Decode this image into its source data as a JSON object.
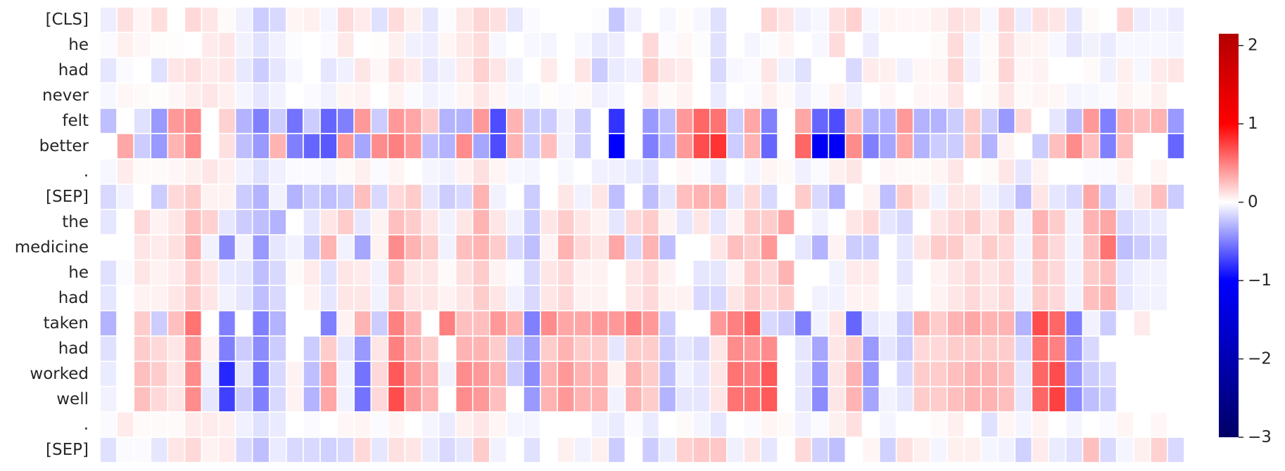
{
  "chart_data": {
    "type": "heatmap",
    "title": "",
    "xlabel": "",
    "ylabel": "",
    "y_labels": [
      "[CLS]",
      "he",
      "had",
      "never",
      "felt",
      "better",
      ".",
      "[SEP]",
      "the",
      "medicine",
      "he",
      "had",
      "taken",
      "had",
      "worked",
      "well",
      ".",
      "[SEP]"
    ],
    "n_columns": 64,
    "colormap": [
      "#000066",
      "#0000ff",
      "#ffffff",
      "#ff0000",
      "#b40000"
    ],
    "colorbar": {
      "vmin": -3,
      "vmax": 2.15,
      "ticks": [
        2,
        1,
        0,
        -1,
        -2,
        -3
      ],
      "tick_labels": [
        "2",
        "1",
        "0",
        "−1",
        "−2",
        "−3"
      ]
    },
    "values": [
      [
        -0.07,
        0.12,
        0.04,
        0.13,
        0.0,
        0.15,
        0.1,
        0.02,
        -0.06,
        -0.2,
        -0.15,
        0.04,
        0.06,
        -0.04,
        0.14,
        0.08,
        -0.12,
        0.14,
        0.06,
        -0.1,
        -0.01,
        0.09,
        0.16,
        0.12,
        -0.09,
        -0.02,
        0.0,
        0.0,
        0.0,
        -0.01,
        -0.22,
        -0.06,
        0.0,
        -0.03,
        0.01,
        -0.03,
        -0.12,
        0.0,
        0.0,
        0.16,
        0.1,
        -0.06,
        -0.03,
        0.12,
        0.18,
        -0.03,
        0.04,
        0.03,
        0.03,
        0.06,
        0.12,
        0.1,
        -0.03,
        0.16,
        -0.07,
        0.12,
        0.1,
        -0.1,
        0.02,
        0.0,
        0.16,
        -0.07,
        -0.05,
        -0.07
      ],
      [
        -0.02,
        0.06,
        0.03,
        0.01,
        0.01,
        0.0,
        0.08,
        0.1,
        -0.05,
        -0.12,
        -0.06,
        -0.01,
        0.0,
        -0.02,
        0.09,
        0.0,
        0.01,
        0.06,
        -0.06,
        -0.07,
        0.04,
        0.09,
        0.14,
        -0.03,
        0.0,
        -0.03,
        -0.04,
        0.0,
        -0.03,
        -0.09,
        -0.07,
        0.0,
        0.15,
        -0.01,
        0.03,
        -0.01,
        -0.12,
        0.0,
        -0.04,
        -0.01,
        0.04,
        0.0,
        -0.03,
        0.14,
        0.0,
        -0.07,
        0.0,
        0.0,
        0.0,
        0.02,
        0.14,
        -0.04,
        0.02,
        0.14,
        0.05,
        0.04,
        -0.03,
        -0.1,
        -0.05,
        -0.08,
        -0.03,
        -0.03,
        -0.03,
        -0.04
      ],
      [
        -0.1,
        -0.02,
        0.0,
        -0.12,
        0.1,
        0.12,
        0.08,
        0.1,
        -0.09,
        -0.2,
        -0.1,
        -0.03,
        0.0,
        -0.1,
        -0.06,
        0.1,
        0.03,
        0.12,
        0.08,
        -0.1,
        -0.06,
        0.08,
        0.18,
        0.1,
        -0.05,
        0.0,
        0.08,
        0.0,
        0.1,
        -0.2,
        -0.08,
        -0.06,
        0.2,
        0.1,
        0.08,
        0.0,
        -0.15,
        -0.03,
        -0.02,
        0.1,
        -0.05,
        -0.12,
        0.0,
        0.0,
        -0.15,
        0.08,
        0.06,
        -0.06,
        0.03,
        0.04,
        0.16,
        -0.05,
        0.02,
        0.16,
        0.03,
        0.05,
        0.0,
        0.0,
        0.02,
        -0.06,
        0.06,
        -0.03,
        0.08,
        0.1
      ],
      [
        -0.03,
        0.03,
        0.02,
        0.01,
        0.03,
        0.07,
        0.1,
        0.06,
        -0.04,
        -0.1,
        -0.05,
        0.0,
        -0.02,
        -0.05,
        0.04,
        0.05,
        0.0,
        0.05,
        -0.02,
        -0.05,
        -0.03,
        0.04,
        0.1,
        0.04,
        -0.03,
        -0.03,
        0.01,
        -0.02,
        0.02,
        -0.06,
        -0.04,
        0.0,
        0.08,
        0.02,
        0.05,
        0.0,
        -0.08,
        0.0,
        -0.02,
        0.06,
        0.02,
        -0.06,
        -0.02,
        0.05,
        -0.06,
        0.0,
        0.03,
        0.0,
        0.03,
        0.03,
        0.1,
        0.0,
        0.02,
        0.1,
        0.02,
        0.04,
        0.03,
        -0.04,
        -0.03,
        -0.02,
        0.05,
        0.02,
        0.06,
        0.0
      ],
      [
        -0.25,
        0.0,
        -0.12,
        -0.4,
        0.4,
        0.45,
        0.0,
        0.18,
        -0.3,
        -0.5,
        -0.2,
        -0.55,
        -0.2,
        -0.6,
        -0.5,
        0.4,
        -0.2,
        0.4,
        0.35,
        0.2,
        -0.3,
        -0.3,
        0.4,
        -0.7,
        0.3,
        -0.2,
        -0.2,
        -0.05,
        -0.2,
        0.0,
        -0.8,
        0.0,
        -0.4,
        -0.25,
        0.4,
        0.6,
        0.55,
        -0.2,
        0.35,
        -0.5,
        0.0,
        0.35,
        -0.6,
        -0.7,
        0.25,
        -0.3,
        -0.3,
        0.4,
        -0.3,
        -0.3,
        -0.2,
        0.2,
        -0.2,
        -0.4,
        0.15,
        0.0,
        -0.1,
        -0.25,
        0.4,
        -0.5,
        0.3,
        0.25,
        0.3,
        -0.4
      ],
      [
        0.0,
        0.35,
        -0.2,
        -0.4,
        0.3,
        0.45,
        0.0,
        0.12,
        -0.25,
        -0.4,
        0.3,
        -0.5,
        -0.6,
        -0.65,
        0.4,
        -0.35,
        0.45,
        0.5,
        0.4,
        -0.25,
        -0.3,
        0.45,
        -0.35,
        -0.7,
        0.3,
        -0.2,
        0.25,
        -0.05,
        -0.2,
        0.0,
        -1.0,
        0.0,
        -0.5,
        -0.3,
        0.4,
        0.7,
        0.8,
        -0.2,
        0.3,
        -0.6,
        0.0,
        0.6,
        -1.15,
        -1.1,
        0.45,
        -0.5,
        -0.35,
        0.35,
        -0.3,
        -0.2,
        -0.2,
        0.2,
        -0.3,
        0.05,
        0.0,
        -0.2,
        0.25,
        0.45,
        0.25,
        -0.5,
        0.25,
        0.0,
        0.0,
        -0.6
      ],
      [
        -0.03,
        0.08,
        0.02,
        0.02,
        0.03,
        0.06,
        0.1,
        0.06,
        -0.06,
        -0.12,
        -0.06,
        -0.02,
        -0.02,
        -0.04,
        0.02,
        0.06,
        -0.02,
        0.04,
        0.0,
        -0.04,
        -0.05,
        0.05,
        0.12,
        0.04,
        -0.03,
        -0.04,
        0.0,
        -0.03,
        0.0,
        -0.06,
        -0.06,
        -0.08,
        -0.12,
        0.0,
        0.03,
        -0.02,
        -0.08,
        0.0,
        -0.04,
        0.04,
        0.02,
        -0.06,
        -0.02,
        0.06,
        0.1,
        0.0,
        0.03,
        0.02,
        0.02,
        0.04,
        0.1,
        0.0,
        0.02,
        0.1,
        -0.1,
        0.05,
        0.0,
        0.0,
        -0.02,
        -0.02,
        0.05,
        0.0,
        0.04,
        0.0
      ],
      [
        -0.15,
        -0.05,
        0.0,
        -0.2,
        0.15,
        0.2,
        0.05,
        0.05,
        -0.2,
        -0.3,
        -0.05,
        -0.3,
        -0.2,
        -0.25,
        -0.2,
        0.25,
        -0.15,
        0.15,
        0.2,
        -0.1,
        -0.2,
        -0.15,
        0.3,
        -0.05,
        0.0,
        -0.2,
        0.0,
        0.1,
        -0.05,
        0.1,
        -0.25,
        0.0,
        -0.25,
        -0.1,
        0.25,
        0.3,
        0.3,
        -0.1,
        0.15,
        -0.15,
        0.0,
        0.2,
        -0.15,
        -0.3,
        0.0,
        0.05,
        -0.25,
        0.2,
        0.1,
        -0.05,
        0.1,
        0.1,
        -0.05,
        -0.1,
        -0.25,
        0.1,
        -0.1,
        -0.15,
        0.35,
        -0.2,
        -0.05,
        0.1,
        0.25,
        -0.2
      ],
      [
        -0.1,
        0.0,
        0.15,
        0.05,
        0.1,
        0.25,
        0.18,
        -0.1,
        -0.2,
        -0.25,
        -0.3,
        0.0,
        -0.1,
        0.1,
        0.2,
        -0.1,
        0.05,
        0.25,
        0.2,
        0.1,
        -0.05,
        0.1,
        0.3,
        0.1,
        -0.05,
        -0.2,
        0.1,
        0.2,
        0.1,
        0.05,
        -0.1,
        0.15,
        0.2,
        0.05,
        -0.1,
        0.1,
        -0.1,
        0.05,
        0.2,
        0.2,
        0.35,
        0.0,
        -0.05,
        0.0,
        0.1,
        0.15,
        -0.1,
        -0.15,
        0.0,
        0.1,
        0.15,
        0.2,
        0.1,
        0.2,
        -0.05,
        0.3,
        0.2,
        -0.05,
        0.3,
        0.35,
        -0.15,
        -0.1,
        -0.08,
        0.0
      ],
      [
        0.0,
        0.0,
        0.1,
        0.08,
        0.12,
        0.3,
        -0.05,
        -0.45,
        -0.05,
        -0.4,
        -0.1,
        -0.05,
        -0.2,
        0.3,
        -0.05,
        -0.35,
        0.05,
        0.45,
        0.3,
        0.2,
        -0.05,
        0.25,
        0.3,
        0.2,
        -0.15,
        -0.25,
        0.05,
        0.3,
        0.15,
        0.1,
        0.35,
        -0.15,
        0.3,
        -0.25,
        0.0,
        0.0,
        0.1,
        0.25,
        0.2,
        0.4,
        0.0,
        -0.1,
        -0.3,
        0.05,
        -0.2,
        -0.2,
        0.0,
        -0.1,
        0.1,
        0.2,
        0.2,
        0.1,
        0.2,
        0.15,
        -0.05,
        0.25,
        0.15,
        -0.05,
        0.25,
        0.55,
        -0.25,
        -0.2,
        -0.15,
        0.0
      ],
      [
        -0.12,
        -0.02,
        0.1,
        0.05,
        0.08,
        0.2,
        0.1,
        -0.08,
        -0.1,
        -0.25,
        -0.15,
        0.02,
        0.08,
        -0.12,
        0.1,
        0.08,
        -0.05,
        0.25,
        0.1,
        0.1,
        0.02,
        0.12,
        0.2,
        0.05,
        -0.02,
        -0.15,
        0.1,
        0.15,
        0.05,
        0.05,
        0.0,
        0.1,
        0.15,
        0.05,
        0.0,
        -0.1,
        -0.1,
        0.05,
        0.2,
        0.15,
        0.3,
        0.0,
        0.0,
        -0.05,
        0.08,
        0.08,
        0.0,
        -0.1,
        0.0,
        0.05,
        0.1,
        0.15,
        0.1,
        0.15,
        -0.05,
        0.2,
        0.15,
        -0.05,
        0.2,
        0.25,
        -0.1,
        -0.05,
        -0.05,
        0.0
      ],
      [
        -0.1,
        0.0,
        0.05,
        0.05,
        0.1,
        0.2,
        0.1,
        -0.05,
        -0.1,
        -0.25,
        -0.15,
        0.0,
        0.05,
        -0.1,
        0.1,
        0.1,
        -0.05,
        0.2,
        0.1,
        0.1,
        0.05,
        0.1,
        0.2,
        0.1,
        -0.05,
        -0.15,
        0.1,
        0.15,
        0.05,
        0.05,
        0.0,
        0.1,
        0.15,
        0.05,
        0.05,
        -0.15,
        -0.15,
        0.1,
        0.2,
        0.15,
        0.2,
        0.0,
        -0.05,
        -0.05,
        0.05,
        0.05,
        0.0,
        -0.05,
        0.0,
        0.05,
        0.1,
        0.15,
        0.1,
        0.15,
        -0.05,
        0.2,
        0.15,
        -0.05,
        0.25,
        0.3,
        -0.1,
        -0.05,
        -0.05,
        0.0
      ],
      [
        -0.3,
        0.0,
        0.2,
        -0.2,
        0.25,
        0.55,
        0.0,
        -0.5,
        0.0,
        -0.5,
        -0.3,
        0.0,
        0.0,
        -0.5,
        0.05,
        0.3,
        -0.2,
        0.5,
        0.3,
        0.0,
        0.5,
        0.25,
        0.25,
        0.4,
        0.3,
        -0.5,
        0.45,
        0.35,
        0.35,
        0.4,
        0.4,
        0.5,
        0.4,
        -0.2,
        0.0,
        0.0,
        0.4,
        0.5,
        0.6,
        -0.15,
        -0.2,
        -0.5,
        -0.05,
        0.1,
        -0.6,
        -0.1,
        -0.05,
        -0.2,
        0.3,
        0.2,
        0.3,
        0.35,
        0.3,
        0.3,
        -0.3,
        0.7,
        0.6,
        -0.5,
        -0.05,
        -0.2,
        0.0,
        0.08,
        0.0,
        0.0
      ],
      [
        -0.12,
        0.0,
        0.2,
        0.15,
        0.1,
        0.4,
        0.05,
        -0.5,
        -0.2,
        -0.45,
        -0.2,
        0.0,
        -0.2,
        0.2,
        -0.1,
        -0.4,
        0.1,
        0.5,
        0.3,
        0.2,
        0.0,
        0.3,
        0.3,
        0.2,
        -0.2,
        -0.35,
        0.2,
        0.3,
        0.2,
        0.2,
        -0.1,
        0.2,
        0.2,
        -0.2,
        -0.1,
        -0.15,
        0.1,
        0.45,
        0.4,
        0.45,
        0.0,
        -0.1,
        -0.35,
        0.1,
        0.2,
        -0.4,
        -0.1,
        -0.2,
        0.15,
        0.15,
        0.2,
        0.2,
        0.2,
        0.2,
        -0.15,
        0.55,
        0.5,
        -0.4,
        -0.15,
        0.0,
        0.0,
        0.0,
        0.0,
        0.0
      ],
      [
        -0.08,
        0.0,
        0.25,
        0.2,
        0.1,
        0.45,
        -0.05,
        -0.85,
        -0.1,
        -0.55,
        -0.15,
        0.05,
        -0.25,
        0.35,
        -0.05,
        -0.55,
        0.15,
        0.65,
        0.4,
        0.3,
        -0.05,
        0.45,
        0.4,
        0.3,
        -0.2,
        -0.45,
        0.3,
        0.4,
        0.3,
        0.3,
        0.05,
        0.3,
        0.2,
        -0.25,
        -0.05,
        -0.1,
        0.1,
        0.55,
        0.5,
        0.65,
        0.0,
        -0.1,
        -0.4,
        0.1,
        0.3,
        -0.4,
        0.0,
        -0.15,
        0.2,
        0.2,
        0.25,
        0.3,
        0.3,
        0.25,
        -0.1,
        0.6,
        0.7,
        -0.4,
        -0.2,
        -0.15,
        0.0,
        0.0,
        0.0,
        0.0
      ],
      [
        -0.05,
        0.0,
        0.25,
        0.15,
        0.1,
        0.45,
        -0.1,
        -0.75,
        -0.2,
        -0.5,
        -0.15,
        0.05,
        -0.3,
        0.35,
        -0.05,
        -0.55,
        0.15,
        0.7,
        0.4,
        0.3,
        0.0,
        0.45,
        0.4,
        0.25,
        0.0,
        -0.4,
        0.3,
        0.4,
        0.3,
        0.3,
        -0.05,
        0.3,
        0.2,
        -0.3,
        -0.1,
        -0.1,
        0.1,
        0.55,
        0.55,
        0.65,
        0.0,
        -0.1,
        -0.45,
        0.1,
        0.3,
        -0.35,
        -0.05,
        -0.1,
        0.2,
        0.2,
        0.25,
        0.3,
        0.3,
        0.25,
        -0.1,
        0.6,
        0.75,
        -0.45,
        -0.25,
        -0.2,
        0.0,
        0.0,
        0.0,
        0.0
      ],
      [
        -0.02,
        0.08,
        0.02,
        0.02,
        0.02,
        0.08,
        0.08,
        0.06,
        -0.06,
        -0.12,
        -0.08,
        0.0,
        -0.02,
        0.0,
        0.03,
        0.04,
        -0.02,
        0.04,
        0.0,
        -0.04,
        -0.08,
        0.06,
        0.1,
        0.04,
        -0.04,
        -0.04,
        0.0,
        0.0,
        0.0,
        -0.05,
        -0.08,
        -0.02,
        -0.08,
        0.0,
        0.02,
        -0.04,
        -0.1,
        0.0,
        -0.02,
        0.04,
        0.02,
        -0.06,
        -0.02,
        0.06,
        0.12,
        0.0,
        -0.04,
        0.0,
        0.0,
        0.02,
        0.06,
        0.0,
        -0.12,
        0.04,
        -0.04,
        0.05,
        0.0,
        -0.04,
        0.0,
        -0.02,
        0.04,
        0.0,
        0.03,
        0.0
      ],
      [
        -0.12,
        -0.02,
        -0.02,
        -0.1,
        0.1,
        0.15,
        0.05,
        0.08,
        -0.15,
        -0.25,
        -0.08,
        -0.15,
        -0.15,
        -0.18,
        -0.15,
        0.15,
        -0.1,
        0.12,
        0.1,
        -0.08,
        -0.15,
        -0.1,
        0.2,
        -0.05,
        0.0,
        -0.12,
        0.0,
        0.06,
        -0.05,
        0.06,
        -0.2,
        0.0,
        -0.2,
        -0.08,
        0.18,
        0.22,
        0.22,
        -0.06,
        0.1,
        -0.1,
        0.0,
        0.15,
        -0.18,
        -0.25,
        0.0,
        0.04,
        -0.18,
        0.12,
        0.06,
        -0.04,
        0.06,
        0.06,
        -0.04,
        -0.06,
        -0.18,
        0.08,
        -0.08,
        -0.12,
        0.25,
        -0.15,
        -0.04,
        0.06,
        0.18,
        -0.15
      ]
    ]
  }
}
